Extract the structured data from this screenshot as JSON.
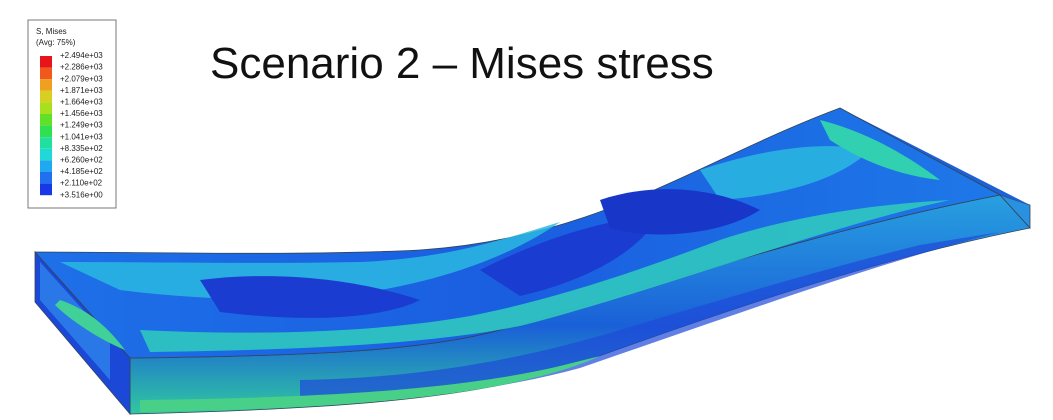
{
  "title": "Scenario 2 – Mises stress",
  "legend": {
    "heading": "S, Mises",
    "subheading": "(Avg: 75%)",
    "labels": [
      "+2.494e+03",
      "+2.286e+03",
      "+2.079e+03",
      "+1.871e+03",
      "+1.664e+03",
      "+1.456e+03",
      "+1.249e+03",
      "+1.041e+03",
      "+8.335e+02",
      "+6.260e+02",
      "+4.185e+02",
      "+2.110e+02",
      "+3.516e+00"
    ],
    "colors": [
      "#e8141c",
      "#f0581c",
      "#f0a020",
      "#d8d020",
      "#a8e020",
      "#60e028",
      "#30e050",
      "#20e0a0",
      "#20d8d8",
      "#20a8f0",
      "#2070f0",
      "#1838e8"
    ]
  }
}
